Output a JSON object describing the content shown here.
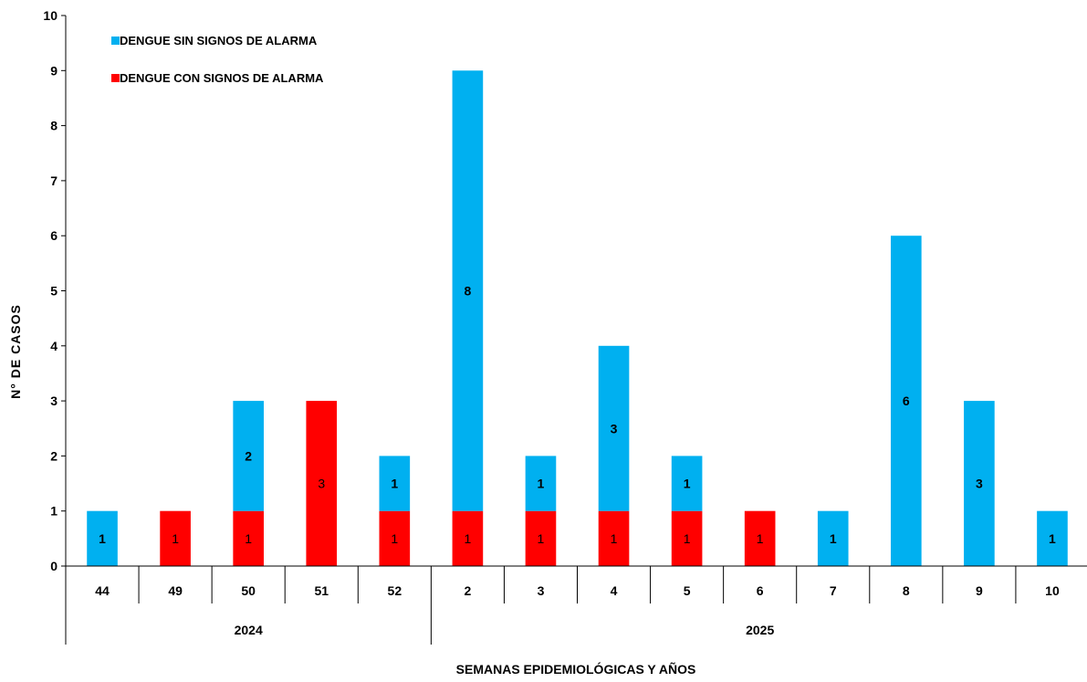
{
  "chart_data": {
    "type": "bar",
    "stacked": true,
    "title": "",
    "xlabel": "SEMANAS EPIDEMIOLÓGICAS  Y AÑOS",
    "ylabel": "N°  DE CASOS",
    "ylim": [
      0,
      10
    ],
    "yticks": [
      "0",
      "1",
      "2",
      "3",
      "4",
      "5",
      "6",
      "7",
      "8",
      "9",
      "10"
    ],
    "grid": false,
    "legend_position": "top-left",
    "categories": [
      "44",
      "49",
      "50",
      "51",
      "52",
      "2",
      "3",
      "4",
      "5",
      "6",
      "7",
      "8",
      "9",
      "10"
    ],
    "year_groups": [
      {
        "label": "2024",
        "count": 5
      },
      {
        "label": "2025",
        "count": 9
      }
    ],
    "series": [
      {
        "name": "DENGUE CON SIGNOS DE ALARMA",
        "color": "#ff0000",
        "values": [
          0,
          1,
          1,
          3,
          1,
          1,
          1,
          1,
          1,
          1,
          0,
          0,
          0,
          0
        ],
        "labels": [
          "",
          "1",
          "1",
          "3",
          "1",
          "1",
          "1",
          "1",
          "1",
          "1",
          "",
          "",
          "",
          ""
        ]
      },
      {
        "name": "DENGUE SIN SIGNOS DE ALARMA",
        "color": "#00b0f0",
        "values": [
          1,
          0,
          2,
          0,
          1,
          8,
          1,
          3,
          1,
          0,
          1,
          6,
          3,
          1
        ],
        "labels": [
          "1",
          "",
          "2",
          "",
          "1",
          "8",
          "1",
          "3",
          "1",
          "",
          "1",
          "6",
          "3",
          "1"
        ]
      }
    ]
  },
  "legend": {
    "items": [
      {
        "label": "DENGUE SIN SIGNOS DE ALARMA",
        "color": "#00b0f0"
      },
      {
        "label": "DENGUE CON SIGNOS DE ALARMA",
        "color": "#ff0000"
      }
    ]
  }
}
